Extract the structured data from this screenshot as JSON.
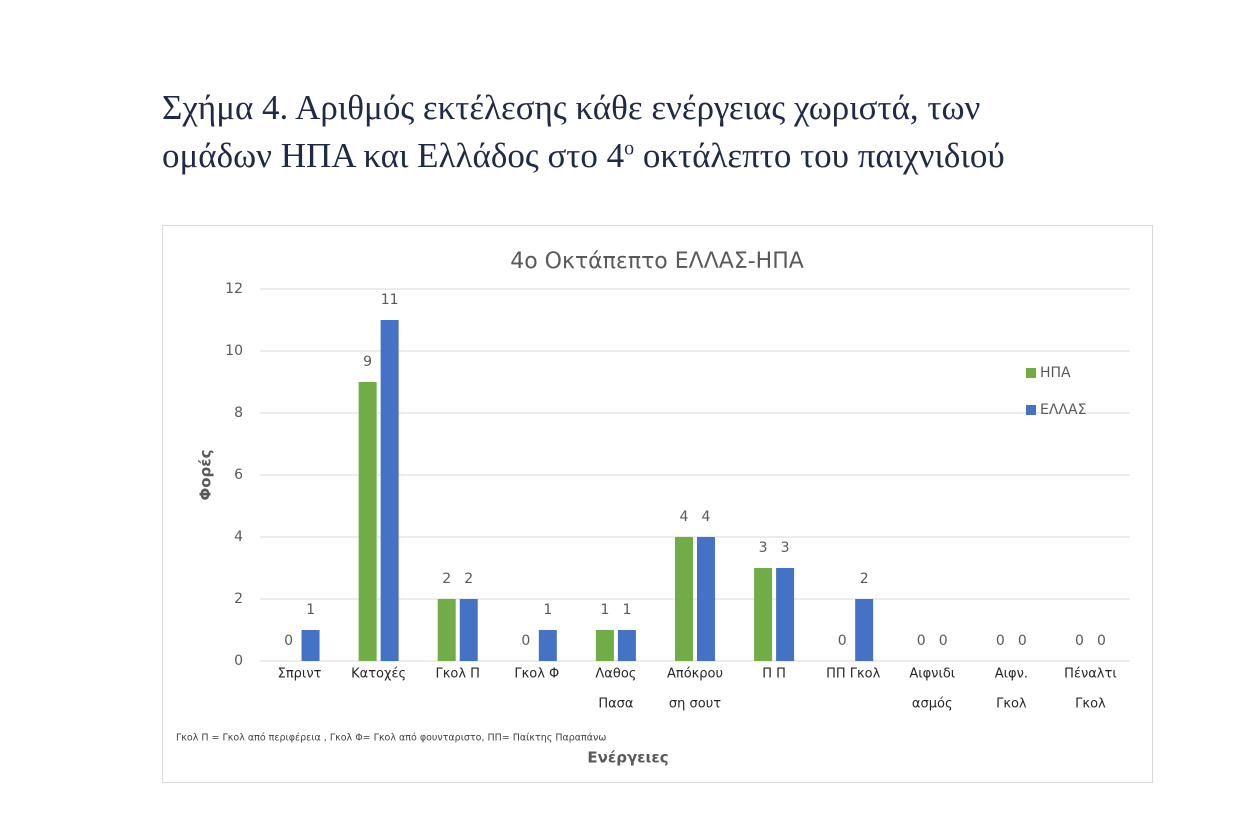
{
  "caption": {
    "line1": "Σχήμα 4. Αριθμός εκτέλεσης κάθε ενέργειας χωριστά, των",
    "line2_before": "ομάδων ΗΠΑ και Ελλάδος στο 4",
    "superscript": "ο",
    "line2_after": "οκτάλεπτο του παιχνιδιού"
  },
  "chart_data": {
    "type": "bar",
    "title": "4ο Οκτάπεπτο ΕΛΛΑΣ-ΗΠΑ",
    "x_label": "Ενέργειες",
    "y_label": "Φορές",
    "note": "Γκολ Π = Γκολ από περιφέρεια , Γκολ Φ= Γκολ από φουνταριστο, ΠΠ= Παίκτης Παραπάνω",
    "categories": [
      [
        "Σπριντ"
      ],
      [
        "Κατοχές"
      ],
      [
        "Γκολ Π"
      ],
      [
        "Γκολ Φ"
      ],
      [
        "Λαθος",
        "Πασα"
      ],
      [
        "Απόκρου",
        "ση σουτ"
      ],
      [
        "Π Π"
      ],
      [
        "ΠΠ Γκολ"
      ],
      [
        "Αιφνιδι",
        "ασμός"
      ],
      [
        "Αιφν.",
        "Γκολ"
      ],
      [
        "Πέναλτι",
        "Γκολ"
      ]
    ],
    "series": [
      {
        "name": "ΗΠΑ",
        "color": "#70ad47",
        "values": [
          0,
          9,
          2,
          0,
          1,
          4,
          3,
          0,
          0,
          0,
          0
        ]
      },
      {
        "name": "ΕΛΛΑΣ",
        "color": "#4472c4",
        "values": [
          1,
          11,
          2,
          1,
          1,
          4,
          3,
          2,
          0,
          0,
          0
        ]
      }
    ],
    "ylim": [
      0,
      12
    ],
    "yticks": [
      0,
      2,
      4,
      6,
      8,
      10,
      12
    ],
    "grid": true,
    "legend": "right",
    "data_labels": true
  }
}
